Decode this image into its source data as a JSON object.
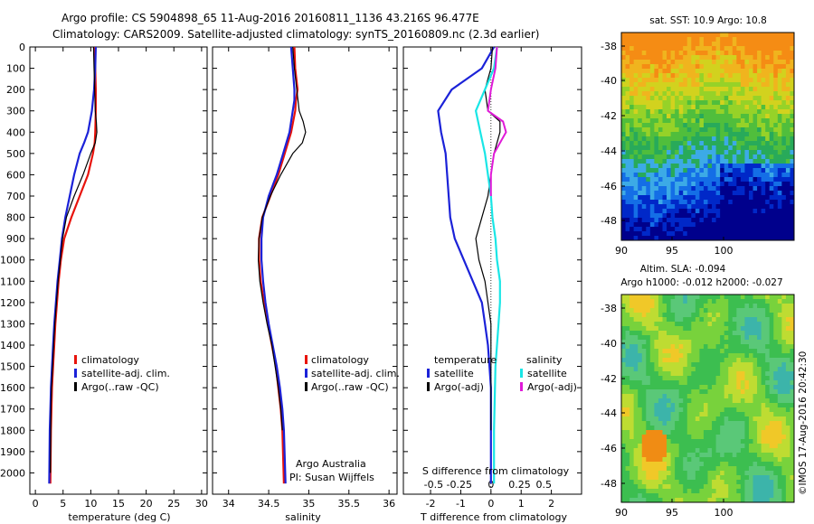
{
  "header": {
    "line1": "Argo profile: CS 5904898_65 11-Aug-2016 20160811_1136 43.216S 96.477E",
    "line2": "Climatology: CARS2009. Satellite-adjusted climatology: synTS_20160809.nc (2.3d earlier)"
  },
  "colors": {
    "climatology": "#e8130c",
    "satellite": "#1b22d8",
    "argo": "#000000",
    "sat_salinity": "#19e6e6",
    "argo_salinity": "#e01ad8"
  },
  "credits": {
    "org": "Argo Australia",
    "pi": "PI: Susan Wijffels",
    "stamp": "©IMOS 17-Aug-2016 20:42:30"
  },
  "map_sst": {
    "title": "sat. SST: 10.9 Argo: 10.8",
    "lat_ticks": [
      "-38",
      "-40",
      "-42",
      "-44",
      "-46",
      "-48"
    ],
    "lon_ticks": [
      "90",
      "95",
      "100"
    ]
  },
  "map_sla": {
    "title1": "Altim. SLA: -0.094",
    "title2": "Argo h1000: -0.012 h2000: -0.027",
    "lat_ticks": [
      "-38",
      "-40",
      "-42",
      "-44",
      "-46",
      "-48"
    ],
    "lon_ticks": [
      "90",
      "95",
      "100"
    ]
  },
  "chart_data": [
    {
      "type": "line",
      "xlabel": "temperature (deg C)",
      "ylim": [
        2100,
        0
      ],
      "xlim": [
        -1,
        31
      ],
      "x_ticks": [
        0,
        5,
        10,
        15,
        20,
        25,
        30
      ],
      "y_ticks": [
        0,
        100,
        200,
        300,
        400,
        500,
        600,
        700,
        800,
        900,
        1000,
        1100,
        1200,
        1300,
        1400,
        1500,
        1600,
        1700,
        1800,
        1900,
        2000
      ],
      "legend": [
        "climatology",
        "satellite-adj. clim.",
        "Argo(..raw -QC)"
      ],
      "series": [
        {
          "name": "climatology",
          "color": "#e8130c",
          "width": 2.2,
          "x": [
            10.7,
            10.8,
            10.9,
            10.9,
            10.8,
            10.7,
            10.4,
            9.5,
            8.0,
            6.5,
            5.2,
            4.6,
            4.2,
            3.9,
            3.6,
            3.4,
            3.2,
            3.0,
            2.9,
            2.8,
            2.7
          ],
          "y": [
            0,
            100,
            200,
            300,
            400,
            450,
            500,
            600,
            700,
            800,
            900,
            1000,
            1100,
            1200,
            1300,
            1400,
            1500,
            1600,
            1700,
            1800,
            2050
          ]
        },
        {
          "name": "satellite-adj. clim.",
          "color": "#1b22d8",
          "width": 2.2,
          "x": [
            10.9,
            10.8,
            10.6,
            10.2,
            9.5,
            8.8,
            8.0,
            7.0,
            6.2,
            5.4,
            4.8,
            4.4,
            4.0,
            3.7,
            3.4,
            3.2,
            3.0,
            2.8,
            2.7,
            2.6,
            2.5
          ],
          "y": [
            0,
            100,
            200,
            300,
            400,
            450,
            500,
            600,
            700,
            800,
            900,
            1000,
            1100,
            1200,
            1300,
            1400,
            1500,
            1600,
            1700,
            1800,
            2050
          ]
        },
        {
          "name": "Argo(..raw -QC)",
          "color": "#000000",
          "width": 1.2,
          "x": [
            10.5,
            10.6,
            10.7,
            10.8,
            11.0,
            11.1,
            10.8,
            10.0,
            8.6,
            7.0,
            5.6,
            4.9,
            4.5,
            4.1,
            3.8,
            3.5,
            3.3,
            3.1,
            2.9,
            2.8,
            2.7
          ],
          "y": [
            0,
            100,
            200,
            300,
            350,
            400,
            450,
            500,
            600,
            700,
            800,
            900,
            1000,
            1100,
            1200,
            1300,
            1400,
            1500,
            1600,
            1700,
            2000
          ]
        }
      ]
    },
    {
      "type": "line",
      "xlabel": "salinity",
      "ylim": [
        2100,
        0
      ],
      "xlim": [
        33.8,
        36.1
      ],
      "x_ticks": [
        34,
        34.5,
        35,
        35.5,
        36
      ],
      "legend": [
        "climatology",
        "satellite-adj. clim.",
        "Argo(..raw -QC)"
      ],
      "series": [
        {
          "name": "climatology",
          "color": "#e8130c",
          "width": 2.2,
          "x": [
            34.82,
            34.83,
            34.86,
            34.84,
            34.83,
            34.78,
            34.7,
            34.62,
            34.52,
            34.42,
            34.38,
            34.38,
            34.4,
            34.44,
            34.49,
            34.54,
            34.59,
            34.62,
            34.65,
            34.67,
            34.69
          ],
          "y": [
            0,
            100,
            200,
            250,
            300,
            400,
            500,
            600,
            700,
            800,
            900,
            1000,
            1100,
            1200,
            1300,
            1400,
            1500,
            1600,
            1700,
            1800,
            2050
          ]
        },
        {
          "name": "satellite-adj. clim.",
          "color": "#1b22d8",
          "width": 2.2,
          "x": [
            34.78,
            34.8,
            34.82,
            34.82,
            34.8,
            34.76,
            34.68,
            34.6,
            34.5,
            34.43,
            34.41,
            34.41,
            34.43,
            34.46,
            34.5,
            34.55,
            34.6,
            34.64,
            34.67,
            34.69,
            34.71
          ],
          "y": [
            0,
            100,
            200,
            250,
            300,
            400,
            500,
            600,
            700,
            800,
            900,
            1000,
            1100,
            1200,
            1300,
            1400,
            1500,
            1600,
            1700,
            1800,
            2050
          ]
        },
        {
          "name": "Argo(..raw -QC)",
          "color": "#000000",
          "width": 1.2,
          "x": [
            34.8,
            34.82,
            34.85,
            34.88,
            34.93,
            34.96,
            34.92,
            34.8,
            34.65,
            34.52,
            34.42,
            34.38,
            34.37,
            34.39,
            34.43,
            34.48,
            34.54,
            34.58,
            34.62,
            34.65,
            34.67
          ],
          "y": [
            0,
            100,
            200,
            300,
            350,
            400,
            450,
            500,
            600,
            700,
            800,
            900,
            1000,
            1100,
            1200,
            1300,
            1400,
            1500,
            1600,
            1700,
            1800
          ]
        }
      ]
    },
    {
      "type": "line",
      "xlabel": "T difference from climatology",
      "xlabel_top": "S difference from climatology",
      "ylim": [
        2100,
        0
      ],
      "xlim": [
        -2.9,
        3.0
      ],
      "x_ticks": [
        -2,
        -1,
        0,
        1,
        2
      ],
      "s_ticks": [
        "-0.5",
        "-0.25",
        "0",
        "0.25",
        "0.5"
      ],
      "legend_groups": {
        "temperature": "temperature",
        "salinity": "salinity",
        "t_items": [
          "satellite",
          "Argo(-adj)"
        ],
        "s_items": [
          "satellite",
          "Argo(-adj)"
        ]
      },
      "series": [
        {
          "name": "temperature satellite",
          "color": "#1b22d8",
          "width": 2.2,
          "x": [
            0.1,
            -0.3,
            -1.3,
            -1.75,
            -1.65,
            -1.5,
            -1.45,
            -1.4,
            -1.35,
            -1.2,
            -0.9,
            -0.6,
            -0.3,
            -0.2,
            -0.1,
            -0.05,
            0.0,
            0.0,
            0.0
          ],
          "y": [
            0,
            100,
            200,
            300,
            400,
            500,
            600,
            700,
            800,
            900,
            1000,
            1100,
            1200,
            1300,
            1400,
            1500,
            1600,
            1800,
            2050
          ]
        },
        {
          "name": "temperature Argo(-adj)",
          "color": "#000000",
          "width": 1.2,
          "x": [
            0.05,
            0.0,
            -0.2,
            -0.1,
            0.3,
            0.3,
            0.1,
            0.0,
            -0.1,
            -0.3,
            -0.5,
            -0.4,
            -0.2,
            -0.1,
            0.0,
            0.0,
            0.0
          ],
          "y": [
            0,
            100,
            200,
            300,
            350,
            400,
            500,
            600,
            700,
            800,
            900,
            1000,
            1100,
            1200,
            1300,
            1500,
            1800
          ]
        },
        {
          "name": "salinity satellite",
          "color": "#19e6e6",
          "width": 2.2,
          "x": [
            0.2,
            0.1,
            -0.2,
            -0.5,
            -0.35,
            -0.2,
            -0.1,
            0.0,
            0.05,
            0.15,
            0.2,
            0.3,
            0.3,
            0.25,
            0.2,
            0.15,
            0.1,
            0.1
          ],
          "y": [
            0,
            100,
            200,
            300,
            400,
            500,
            600,
            700,
            800,
            900,
            1000,
            1100,
            1200,
            1300,
            1400,
            1500,
            1800,
            2050
          ]
        },
        {
          "name": "salinity Argo(-adj)",
          "color": "#e01ad8",
          "width": 2.0,
          "x": [
            0.2,
            0.15,
            0.0,
            -0.1,
            0.4,
            0.5,
            0.3,
            0.1,
            0.0,
            0.0
          ],
          "y": [
            0,
            100,
            200,
            300,
            350,
            400,
            450,
            500,
            600,
            700
          ]
        }
      ]
    }
  ]
}
